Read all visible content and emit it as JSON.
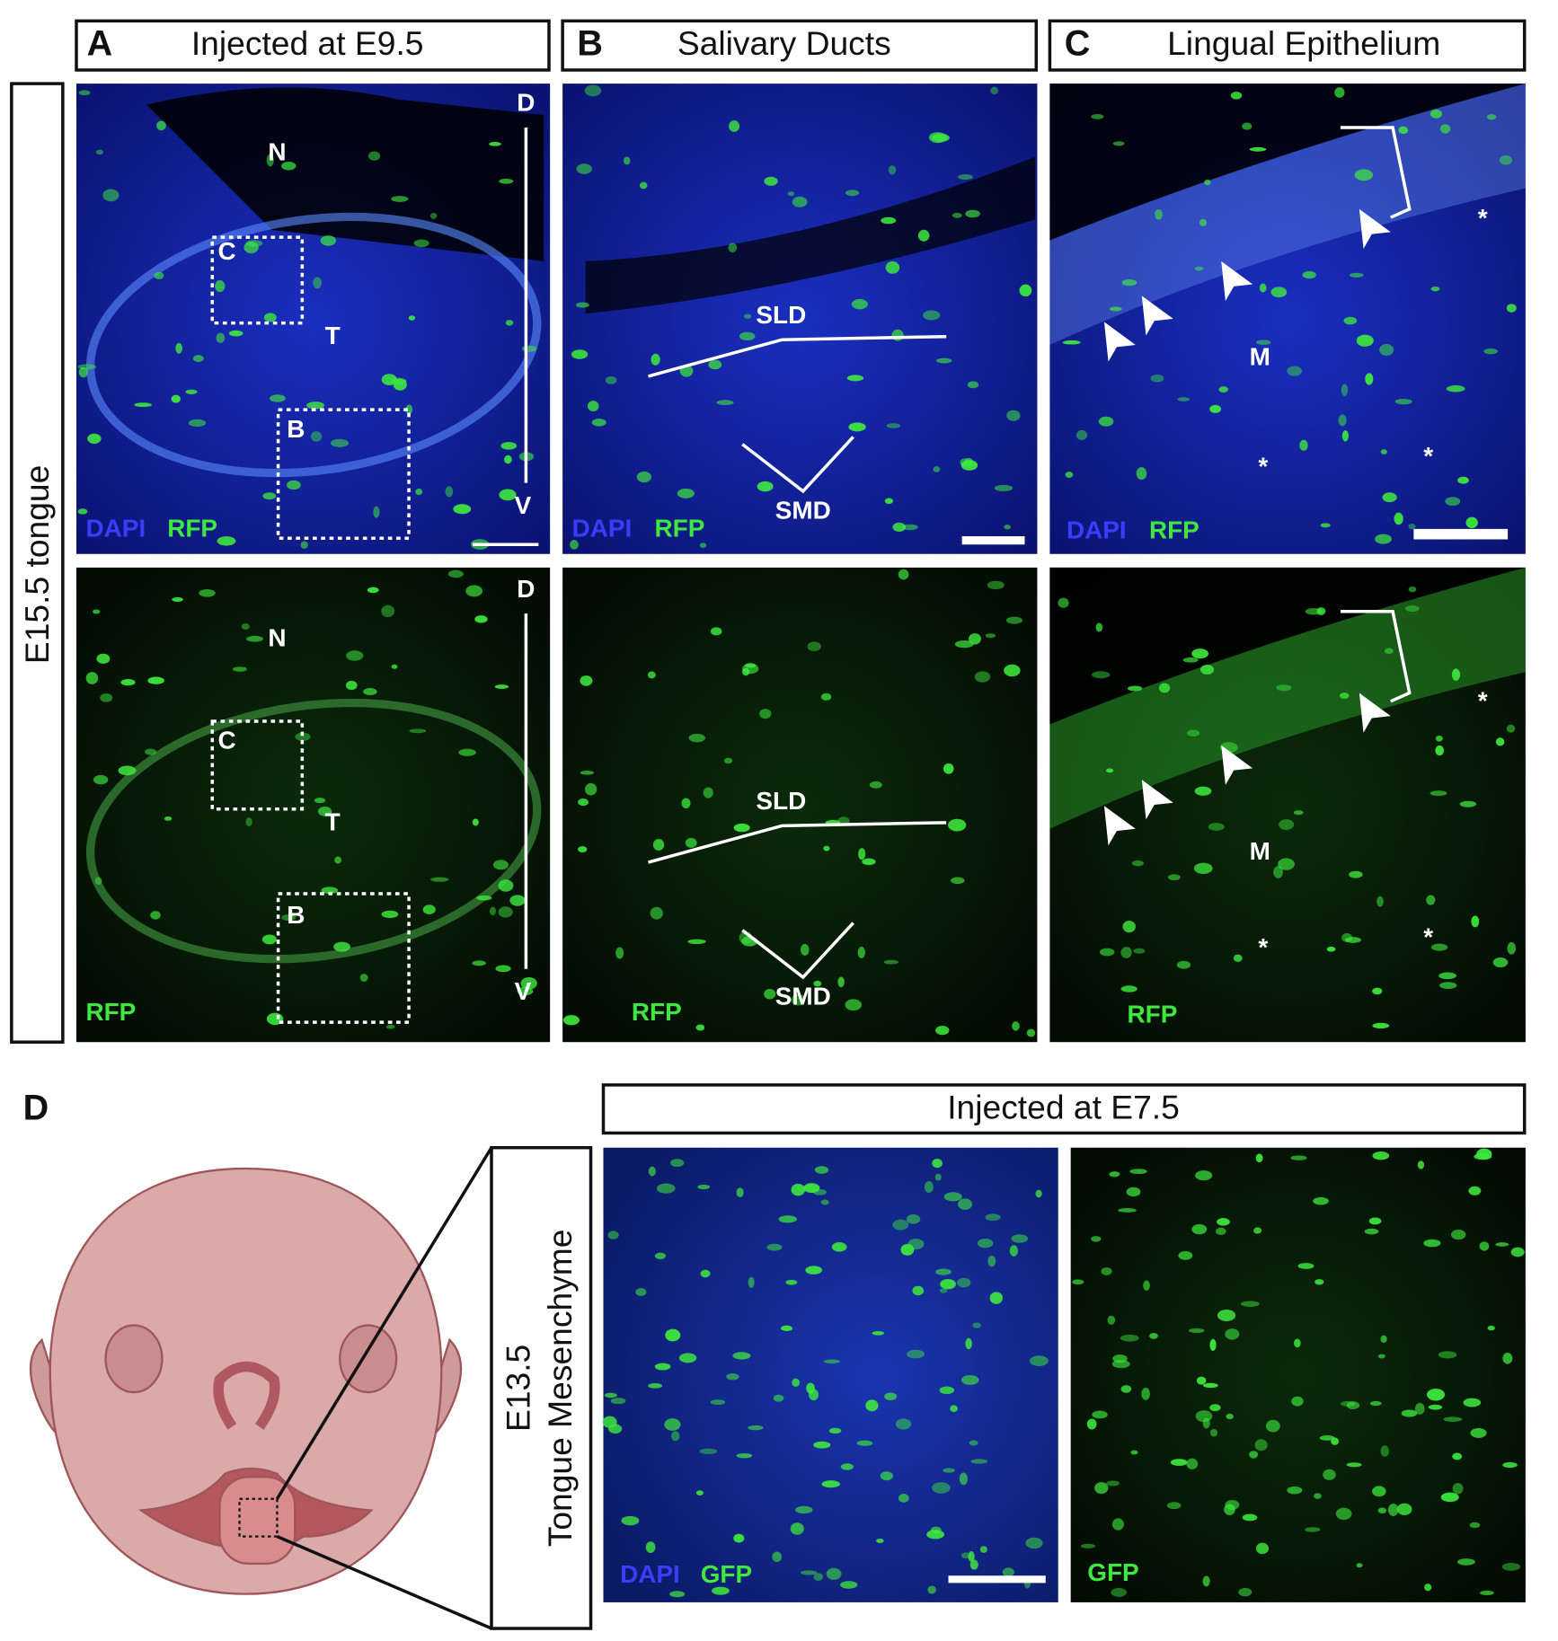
{
  "row_label": "E15.5 tongue",
  "columns": [
    {
      "letter": "A",
      "title": "Injected at E9.5",
      "top": [
        "N",
        "T",
        "C",
        "B",
        "D",
        "V",
        "DAPI",
        "RFP"
      ],
      "bottom": [
        "N",
        "T",
        "C",
        "B",
        "D",
        "V",
        "RFP"
      ]
    },
    {
      "letter": "B",
      "title": "Salivary Ducts",
      "top": [
        "SLD",
        "SMD",
        "DAPI",
        "RFP"
      ],
      "bottom": [
        "SLD",
        "SMD",
        "RFP"
      ]
    },
    {
      "letter": "C",
      "title": "Lingual Epithelium",
      "top": [
        "M",
        "*",
        "*",
        "*",
        "DAPI",
        "RFP"
      ],
      "bottom": [
        "M",
        "*",
        "*",
        "*",
        "RFP"
      ]
    }
  ],
  "panel_d": {
    "letter": "D",
    "title": "Injected at E7.5",
    "stage": "E13.5",
    "region": "Tongue Mesenchyme",
    "merge": [
      "DAPI",
      "GFP"
    ],
    "single": [
      "GFP"
    ]
  }
}
